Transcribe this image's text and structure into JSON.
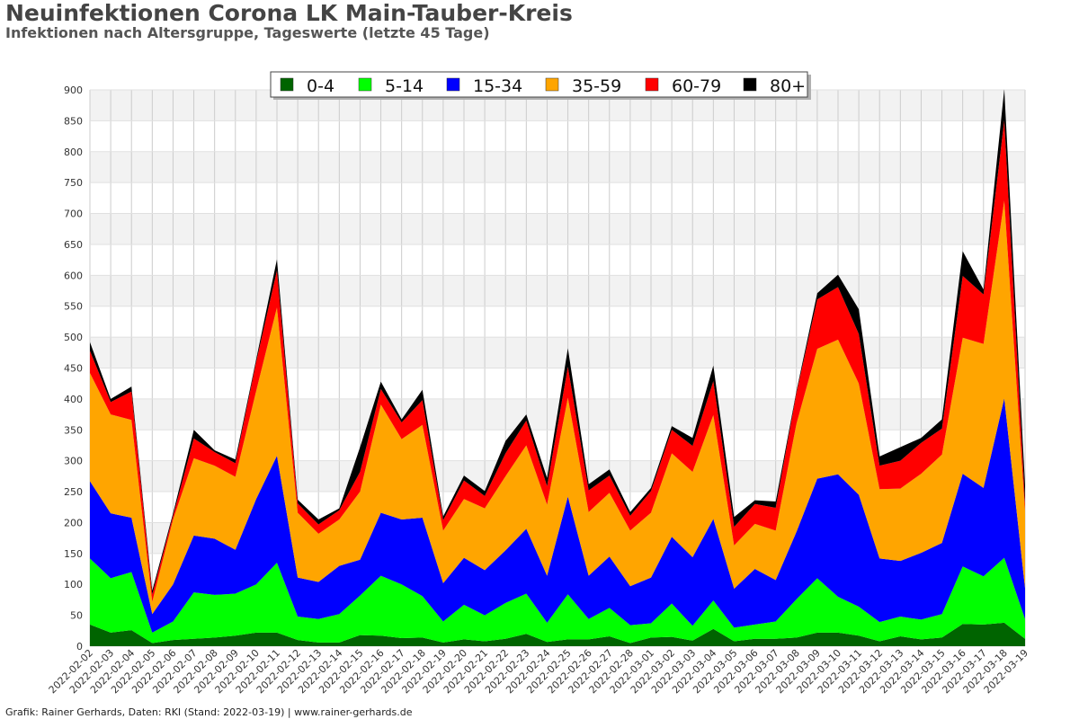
{
  "header": {
    "title": "Neuinfektionen Corona LK Main-Tauber-Kreis",
    "subtitle": "Infektionen nach Altersgruppe, Tageswerte (letzte 45 Tage)"
  },
  "footer": {
    "credit": "Grafik: Rainer Gerhards, Daten: RKI (Stand: 2022-03-19) | www.rainer-gerhards.de"
  },
  "chart_data": {
    "type": "area",
    "stacked": true,
    "title": "Neuinfektionen Corona LK Main-Tauber-Kreis",
    "subtitle": "Infektionen nach Altersgruppe, Tageswerte (letzte 45 Tage)",
    "xlabel": "",
    "ylabel": "",
    "ylim": [
      0,
      900
    ],
    "yticks": [
      0,
      50,
      100,
      150,
      200,
      250,
      300,
      350,
      400,
      450,
      500,
      550,
      600,
      650,
      700,
      750,
      800,
      850,
      900
    ],
    "grid": true,
    "legend_position": "top-center",
    "categories": [
      "2022-02-02",
      "2022-02-03",
      "2022-02-04",
      "2022-02-05",
      "2022-02-06",
      "2022-02-07",
      "2022-02-08",
      "2022-02-09",
      "2022-02-10",
      "2022-02-11",
      "2022-02-12",
      "2022-02-13",
      "2022-02-14",
      "2022-02-15",
      "2022-02-16",
      "2022-02-17",
      "2022-02-18",
      "2022-02-19",
      "2022-02-20",
      "2022-02-21",
      "2022-02-22",
      "2022-02-23",
      "2022-02-24",
      "2022-02-25",
      "2022-02-26",
      "2022-02-27",
      "2022-02-28",
      "2022-03-01",
      "2022-03-02",
      "2022-03-03",
      "2022-03-04",
      "2022-03-05",
      "2022-03-06",
      "2022-03-07",
      "2022-03-08",
      "2022-03-09",
      "2022-03-10",
      "2022-03-11",
      "2022-03-12",
      "2022-03-13",
      "2022-03-14",
      "2022-03-15",
      "2022-03-16",
      "2022-03-17",
      "2022-03-18",
      "2022-03-19"
    ],
    "series": [
      {
        "name": "0-4",
        "color": "#006400",
        "values": [
          35,
          22,
          26,
          5,
          10,
          12,
          14,
          17,
          22,
          22,
          10,
          6,
          6,
          18,
          17,
          13,
          14,
          6,
          11,
          8,
          12,
          20,
          7,
          11,
          11,
          16,
          5,
          14,
          15,
          9,
          28,
          8,
          12,
          12,
          14,
          22,
          22,
          17,
          8,
          16,
          11,
          14,
          36,
          35,
          38,
          12
        ]
      },
      {
        "name": "5-14",
        "color": "#00ff00",
        "values": [
          107,
          88,
          94,
          17,
          30,
          75,
          69,
          68,
          78,
          113,
          38,
          38,
          46,
          64,
          97,
          87,
          67,
          34,
          56,
          42,
          58,
          65,
          31,
          73,
          33,
          46,
          29,
          23,
          54,
          24,
          46,
          22,
          23,
          28,
          62,
          88,
          58,
          47,
          31,
          32,
          32,
          38,
          93,
          78,
          105,
          32
        ]
      },
      {
        "name": "15-34",
        "color": "#0000ff",
        "values": [
          125,
          105,
          88,
          30,
          60,
          92,
          91,
          71,
          138,
          173,
          63,
          60,
          78,
          58,
          102,
          105,
          127,
          62,
          76,
          73,
          85,
          105,
          76,
          158,
          70,
          83,
          63,
          74,
          108,
          111,
          132,
          63,
          90,
          67,
          109,
          161,
          198,
          181,
          103,
          90,
          108,
          115,
          150,
          143,
          258,
          50
        ]
      },
      {
        "name": "35-59",
        "color": "#ffa500",
        "values": [
          175,
          160,
          158,
          20,
          105,
          125,
          118,
          118,
          175,
          240,
          105,
          78,
          75,
          110,
          175,
          130,
          150,
          85,
          95,
          100,
          120,
          135,
          115,
          160,
          103,
          103,
          90,
          105,
          135,
          138,
          168,
          70,
          73,
          80,
          175,
          210,
          218,
          180,
          112,
          117,
          128,
          143,
          220,
          233,
          320,
          125
        ]
      },
      {
        "name": "60-79",
        "color": "#ff0000",
        "values": [
          36,
          20,
          46,
          12,
          6,
          32,
          22,
          22,
          47,
          60,
          15,
          15,
          15,
          32,
          25,
          27,
          40,
          17,
          30,
          20,
          37,
          40,
          30,
          50,
          35,
          28,
          24,
          35,
          38,
          42,
          55,
          30,
          32,
          37,
          50,
          80,
          85,
          80,
          38,
          45,
          50,
          42,
          100,
          80,
          130,
          12
        ]
      },
      {
        "name": "80+",
        "color": "#000000",
        "values": [
          14,
          5,
          8,
          6,
          4,
          14,
          3,
          6,
          4,
          18,
          6,
          8,
          3,
          40,
          12,
          5,
          17,
          6,
          8,
          8,
          20,
          10,
          13,
          30,
          10,
          10,
          6,
          5,
          6,
          13,
          25,
          16,
          6,
          10,
          3,
          10,
          20,
          40,
          15,
          22,
          8,
          15,
          40,
          8,
          50,
          30
        ]
      }
    ]
  }
}
